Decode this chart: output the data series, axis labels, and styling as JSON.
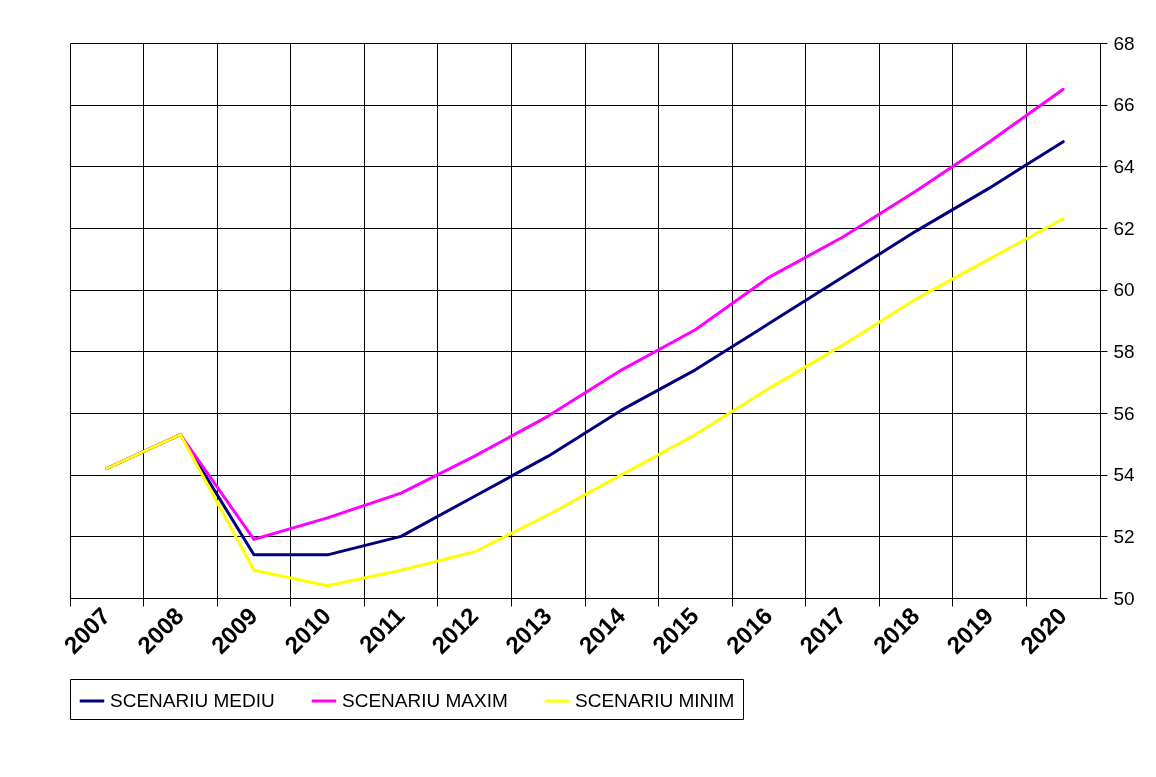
{
  "chart_data": {
    "type": "line",
    "categories": [
      "2007",
      "2008",
      "2009",
      "2010",
      "2011",
      "2012",
      "2013",
      "2014",
      "2015",
      "2016",
      "2017",
      "2018",
      "2019",
      "2020"
    ],
    "series": [
      {
        "name": "SCENARIU MEDIU",
        "color": "#000080",
        "values": [
          54.2,
          55.3,
          51.4,
          51.4,
          52.0,
          53.3,
          54.6,
          56.1,
          57.4,
          58.9,
          60.4,
          61.9,
          63.3,
          64.8
        ]
      },
      {
        "name": "SCENARIU MAXIM",
        "color": "#ff00ff",
        "values": [
          54.2,
          55.3,
          51.9,
          52.6,
          53.4,
          54.6,
          55.9,
          57.4,
          58.7,
          60.4,
          61.7,
          63.2,
          64.8,
          66.5
        ]
      },
      {
        "name": "SCENARIU MINIM",
        "color": "#ffff00",
        "values": [
          54.2,
          55.3,
          50.9,
          50.4,
          50.9,
          51.5,
          52.7,
          54.0,
          55.3,
          56.8,
          58.2,
          59.7,
          61.0,
          62.3
        ]
      }
    ],
    "ylim": [
      50,
      68
    ],
    "yticks": [
      50,
      52,
      54,
      56,
      58,
      60,
      62,
      64,
      66,
      68
    ],
    "grid": true,
    "legend": "bottom",
    "marker": "none",
    "line_style": "solid"
  }
}
